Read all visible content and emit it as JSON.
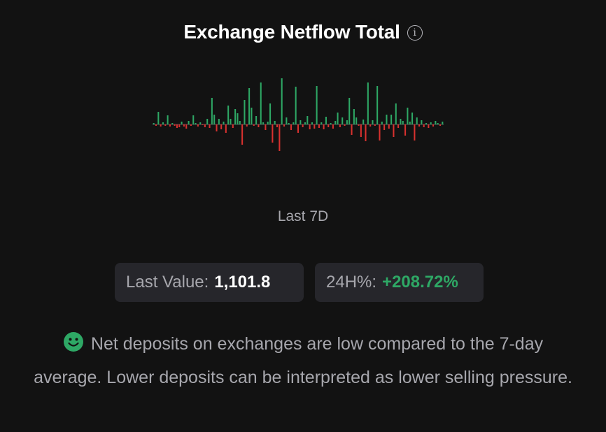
{
  "header": {
    "title": "Exchange Netflow Total",
    "info_icon": "info-icon"
  },
  "period_label": "Last 7D",
  "stats": {
    "last_value_label": "Last Value:",
    "last_value": "1,101.8",
    "change_label": "24H%:",
    "change_value": "+208.72%"
  },
  "summary": {
    "icon": "smiley-face-icon",
    "text": "Net deposits on exchanges are low compared to the 7-day average. Lower deposits can be interpreted as lower selling pressure."
  },
  "colors": {
    "positive": "#2ea865",
    "negative": "#d9312f",
    "background": "#121212",
    "card": "#26262b"
  },
  "chart_data": {
    "type": "bar",
    "title": "",
    "xlabel": "",
    "ylabel": "",
    "grid": false,
    "legend": "none",
    "ylim": [
      -45,
      70
    ],
    "values": [
      2,
      -2,
      18,
      -3,
      3,
      -2,
      13,
      -3,
      2,
      -2,
      -5,
      -4,
      4,
      -3,
      -6,
      5,
      -2,
      13,
      2,
      -3,
      3,
      -1,
      -4,
      8,
      -5,
      38,
      14,
      -10,
      8,
      -7,
      4,
      -12,
      27,
      8,
      -5,
      22,
      16,
      5,
      -29,
      35,
      -3,
      52,
      24,
      -2,
      12,
      -4,
      60,
      3,
      -8,
      4,
      30,
      -26,
      5,
      -4,
      -38,
      66,
      -3,
      10,
      2,
      -8,
      3,
      54,
      -12,
      6,
      -4,
      3,
      12,
      -7,
      3,
      -6,
      55,
      -5,
      3,
      -7,
      11,
      -4,
      2,
      -6,
      5,
      17,
      -4,
      10,
      -2,
      6,
      38,
      -15,
      22,
      10,
      -2,
      -18,
      7,
      -24,
      60,
      -3,
      6,
      -2,
      55,
      -23,
      4,
      -8,
      14,
      -6,
      14,
      -18,
      30,
      -5,
      8,
      5,
      -16,
      24,
      4,
      17,
      -23,
      10,
      -3,
      6,
      -4,
      2,
      -5,
      3,
      -3,
      5,
      2,
      -2,
      4
    ]
  }
}
